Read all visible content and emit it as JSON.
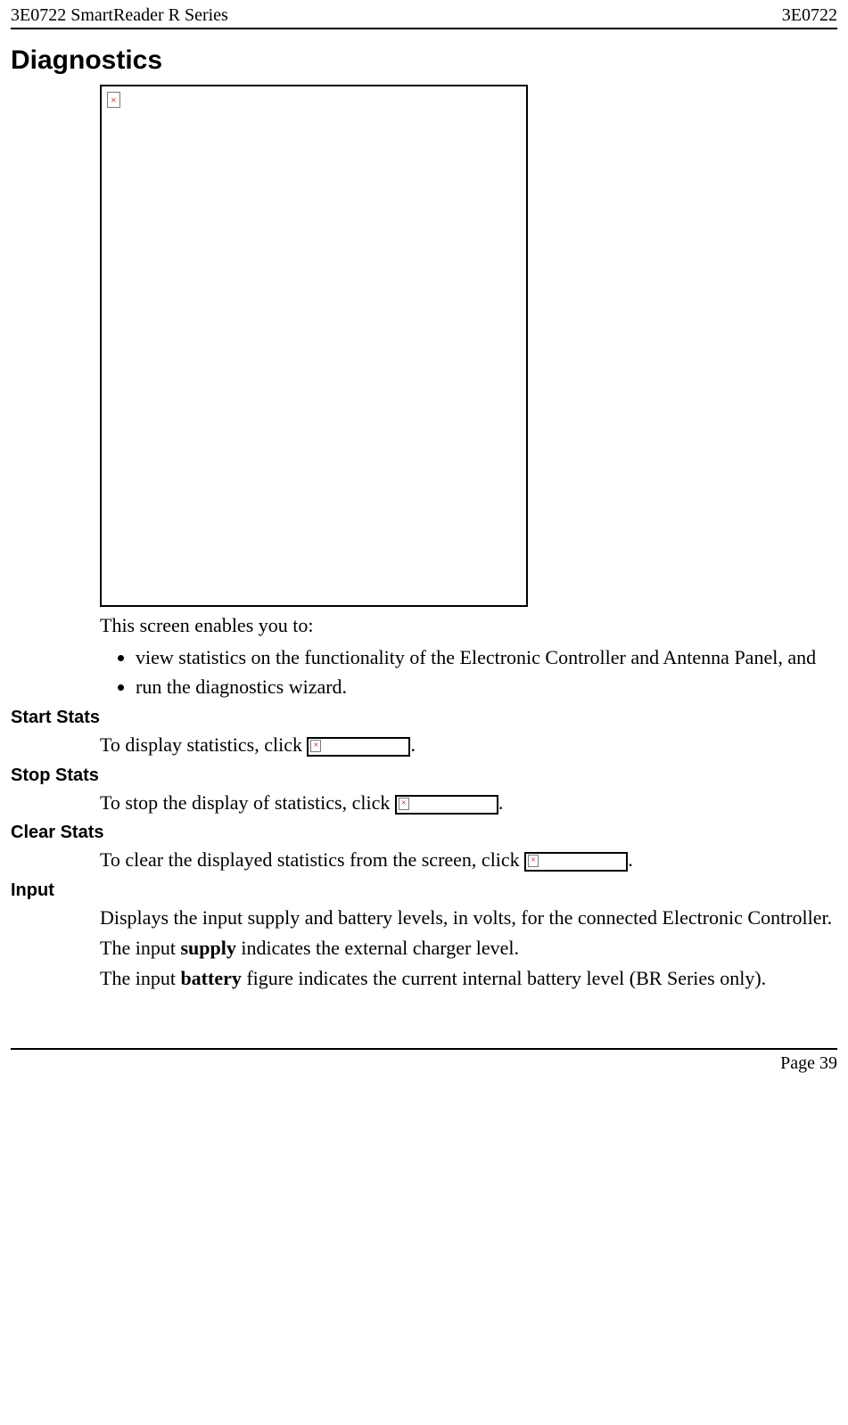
{
  "header": {
    "left": "3E0722 SmartReader R Series",
    "right": "3E0722"
  },
  "title": "Diagnostics",
  "intro": "This screen enables you to:",
  "bullets": [
    "view statistics on the functionality of the Electronic Controller and Antenna Panel, and",
    "run the diagnostics wizard."
  ],
  "sections": {
    "start": {
      "heading": "Start Stats",
      "before": "To display statistics, click ",
      "after": "."
    },
    "stop": {
      "heading": "Stop Stats",
      "before": "To stop the display of statistics, click ",
      "after": "."
    },
    "clear": {
      "heading": "Clear Stats",
      "before": "To clear the displayed statistics from the screen, click ",
      "after": "."
    },
    "input": {
      "heading": "Input",
      "p1": "Displays the input supply and battery levels, in volts, for the connected Electronic Controller.",
      "p2_before": "The input ",
      "p2_bold": "supply",
      "p2_after": " indicates the external charger level.",
      "p3_before": "The input ",
      "p3_bold": "battery",
      "p3_after": " figure indicates the current internal battery level (BR Series only)."
    }
  },
  "footer": "Page 39",
  "broken_glyph": "×"
}
